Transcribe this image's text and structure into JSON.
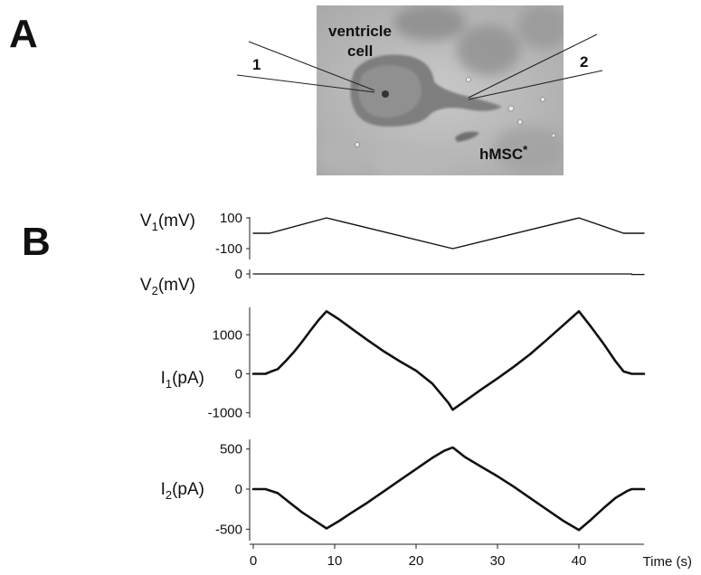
{
  "panels": {
    "a_label": "A",
    "b_label": "B"
  },
  "micrograph": {
    "cell_label_line1": "ventricle",
    "cell_label_line2": "cell",
    "electrode_1": "1",
    "electrode_2": "2",
    "stem_cell_label": "hMSC",
    "stem_cell_marker": "*"
  },
  "chart_data": {
    "type": "line",
    "x_axis": {
      "label": "Time (s)",
      "ticks": [
        0,
        10,
        20,
        30,
        40
      ],
      "range": [
        0,
        48
      ]
    },
    "rows": [
      {
        "id": "v1",
        "ylabel_main": "V",
        "ylabel_sub": "1",
        "ylabel_unit": "(mV)",
        "yticks": [
          100,
          -100
        ],
        "ylim": [
          -100,
          100
        ],
        "x": [
          0,
          2,
          9,
          24.5,
          40,
          45.5,
          48
        ],
        "y": [
          0,
          0,
          100,
          -100,
          100,
          0,
          0
        ]
      },
      {
        "id": "v2",
        "ylabel_main": "V",
        "ylabel_sub": "2",
        "ylabel_unit": "(mV)",
        "yticks": [
          0
        ],
        "ylim": [
          -5,
          5
        ],
        "x": [
          0,
          46.5,
          46.5,
          48
        ],
        "y": [
          0,
          0,
          -0.8,
          -0.8
        ]
      },
      {
        "id": "i1",
        "ylabel_main": "I",
        "ylabel_sub": "1",
        "ylabel_unit": "(pA)",
        "yticks": [
          1000,
          0,
          -1000
        ],
        "ylim": [
          -1100,
          1700
        ],
        "x": [
          0,
          1.5,
          2.2,
          3,
          4,
          5,
          6,
          7,
          8,
          9,
          10.5,
          12,
          14,
          16,
          18,
          20,
          22,
          24,
          24.5,
          26,
          28,
          30,
          32,
          34,
          36,
          38,
          40,
          41.5,
          43,
          44.5,
          45.5,
          46.5,
          48
        ],
        "y": [
          0,
          0,
          60,
          120,
          330,
          560,
          820,
          1100,
          1370,
          1600,
          1400,
          1170,
          870,
          580,
          320,
          80,
          -250,
          -750,
          -920,
          -700,
          -400,
          -120,
          180,
          500,
          860,
          1230,
          1600,
          1200,
          780,
          320,
          60,
          0,
          0
        ]
      },
      {
        "id": "i2",
        "ylabel_main": "I",
        "ylabel_sub": "2",
        "ylabel_unit": "(pA)",
        "yticks": [
          500,
          0,
          -500
        ],
        "ylim": [
          -620,
          620
        ],
        "x": [
          0,
          1.5,
          3,
          4.5,
          6,
          7.5,
          9,
          10.5,
          12,
          14,
          16,
          18,
          20,
          22,
          23.5,
          24.5,
          26,
          28,
          30,
          32,
          34,
          36,
          38,
          40,
          41.5,
          43,
          44.5,
          46,
          46.5,
          48
        ],
        "y": [
          0,
          0,
          -50,
          -170,
          -290,
          -390,
          -490,
          -400,
          -300,
          -170,
          -30,
          110,
          250,
          390,
          480,
          520,
          400,
          280,
          160,
          30,
          -110,
          -250,
          -390,
          -510,
          -380,
          -240,
          -110,
          -20,
          0,
          0
        ]
      }
    ]
  }
}
